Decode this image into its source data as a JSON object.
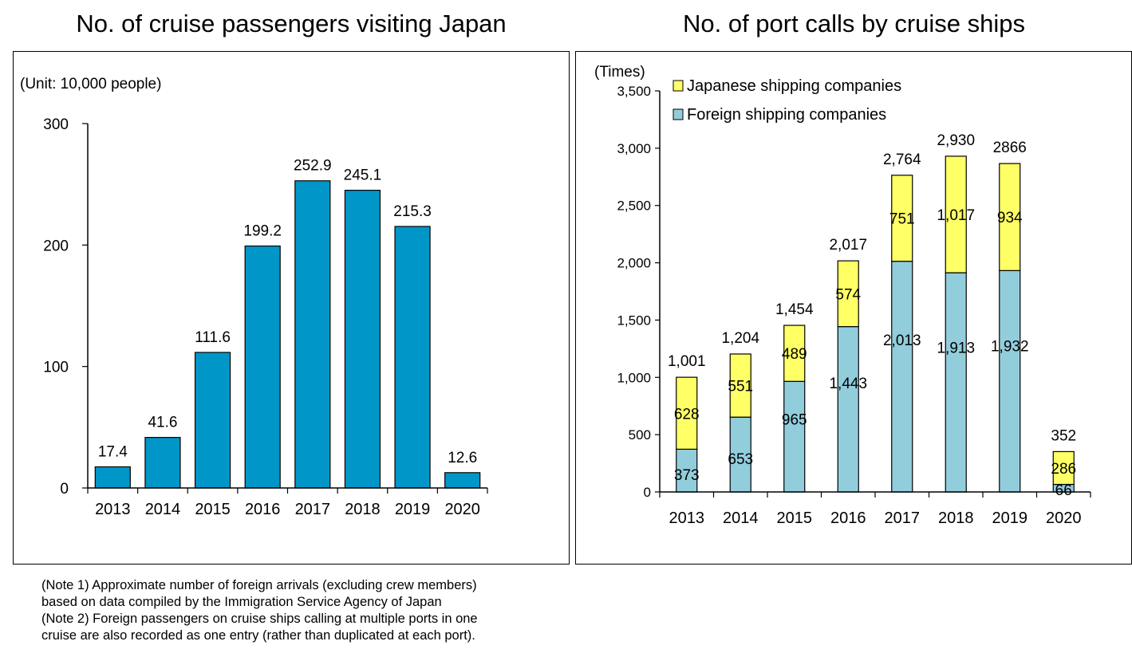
{
  "titles": {
    "left": "No. of cruise passengers visiting Japan",
    "right": "No. of port calls by cruise ships"
  },
  "notes": [
    "(Note 1) Approximate number of foreign arrivals (excluding crew members)",
    "based on data compiled by the Immigration Service Agency of Japan",
    "(Note 2) Foreign passengers on cruise ships calling at multiple ports in one",
    "cruise are also recorded as one entry (rather than duplicated at each port)."
  ],
  "chart_data": [
    {
      "type": "bar",
      "title": "No. of cruise passengers visiting Japan",
      "unit_label": "(Unit: 10,000 people)",
      "categories": [
        "2013",
        "2014",
        "2015",
        "2016",
        "2017",
        "2018",
        "2019",
        "2020"
      ],
      "values": [
        17.4,
        41.6,
        111.6,
        199.2,
        252.9,
        245.1,
        215.3,
        12.6
      ],
      "value_labels": [
        "17.4",
        "41.6",
        "111.6",
        "199.2",
        "252.9",
        "245.1",
        "215.3",
        "12.6"
      ],
      "ylim": [
        0,
        300
      ],
      "yticks": [
        "0",
        "100",
        "200",
        "300"
      ],
      "color": "#0096C8",
      "grid": false
    },
    {
      "type": "bar",
      "stacked": true,
      "title": "No. of port calls by cruise ships",
      "unit_label": "(Times)",
      "categories": [
        "2013",
        "2014",
        "2015",
        "2016",
        "2017",
        "2018",
        "2019",
        "2020"
      ],
      "series": [
        {
          "name": "Foreign shipping companies",
          "values": [
            373,
            653,
            965,
            1443,
            2013,
            1913,
            1932,
            66
          ],
          "labels": [
            "373",
            "653",
            "965",
            "1,443",
            "2,013",
            "1,913",
            "1,932",
            "66"
          ],
          "color": "#92CDDC"
        },
        {
          "name": "Japanese shipping companies",
          "values": [
            628,
            551,
            489,
            574,
            751,
            1017,
            934,
            286
          ],
          "labels": [
            "628",
            "551",
            "489",
            "574",
            "751",
            "1,017",
            "934",
            "286"
          ],
          "color": "#FFFF66"
        }
      ],
      "totals": [
        1001,
        1204,
        1454,
        2017,
        2764,
        2930,
        2866,
        352
      ],
      "total_labels": [
        "1,001",
        "1,204",
        "1,454",
        "2,017",
        "2,764",
        "2,930",
        "2866",
        "352"
      ],
      "ylim": [
        0,
        3500
      ],
      "yticks": [
        "0",
        "500",
        "1,000",
        "1,500",
        "2,000",
        "2,500",
        "3,000",
        "3,500"
      ],
      "legend_position": "top-left",
      "grid": false
    }
  ]
}
